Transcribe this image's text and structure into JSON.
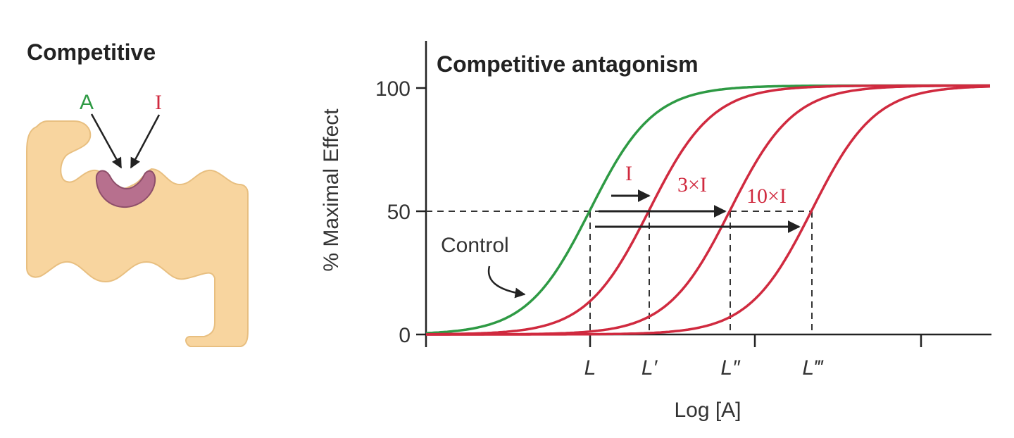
{
  "left_panel": {
    "title": "Competitive",
    "agonist_label": "A",
    "inhibitor_label": "I"
  },
  "chart_data": {
    "type": "line",
    "title": "Competitive antagonism",
    "xlabel": "Log [A]",
    "ylabel": "% Maximal Effect",
    "ylim": [
      0,
      100
    ],
    "y_ticks": [
      "0",
      "50",
      "100"
    ],
    "x_markers": [
      "L",
      "L′",
      "L″",
      "L‴"
    ],
    "grid": false,
    "series": [
      {
        "name": "Control",
        "color": "#2e9a44",
        "ec50_marker": "L"
      },
      {
        "name": "I",
        "color": "#d02a3f",
        "ec50_marker": "L′"
      },
      {
        "name": "3×I",
        "color": "#d02a3f",
        "ec50_marker": "L″"
      },
      {
        "name": "10×I",
        "color": "#d02a3f",
        "ec50_marker": "L‴"
      }
    ]
  },
  "colors": {
    "agonist": "#2e9a44",
    "inhibitor": "#d02a3f",
    "receptor_fill": "#f8d59f",
    "receptor_stroke": "#e0b070",
    "binding_site": "#b7708e",
    "axis": "#222222"
  }
}
